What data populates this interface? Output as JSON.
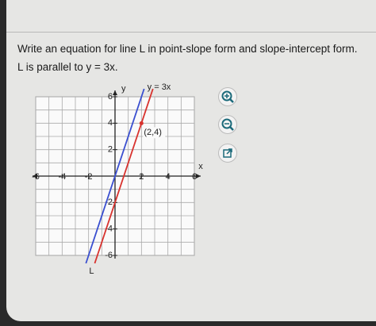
{
  "question": {
    "line1": "Write an equation for line L in point-slope form and slope-intercept form.",
    "line2": "L is parallel to y = 3x."
  },
  "graph": {
    "x_label": "x",
    "y_label": "y",
    "xlim": [
      -6,
      6
    ],
    "ylim": [
      -6,
      6
    ],
    "xticks": [
      -6,
      -4,
      -2,
      2,
      4,
      6
    ],
    "yticks": [
      -6,
      -4,
      -2,
      2,
      4,
      6
    ],
    "lines": [
      {
        "name": "y = 3x",
        "color": "#3a4fd0",
        "slope": 3,
        "x": 0,
        "y": 0
      },
      {
        "name": "L",
        "color": "#d8322e",
        "slope": 3,
        "x": 2,
        "y": 4
      }
    ],
    "point": {
      "x": 2,
      "y": 4,
      "label": "(2,4)",
      "color": "#d8322e"
    }
  }
}
